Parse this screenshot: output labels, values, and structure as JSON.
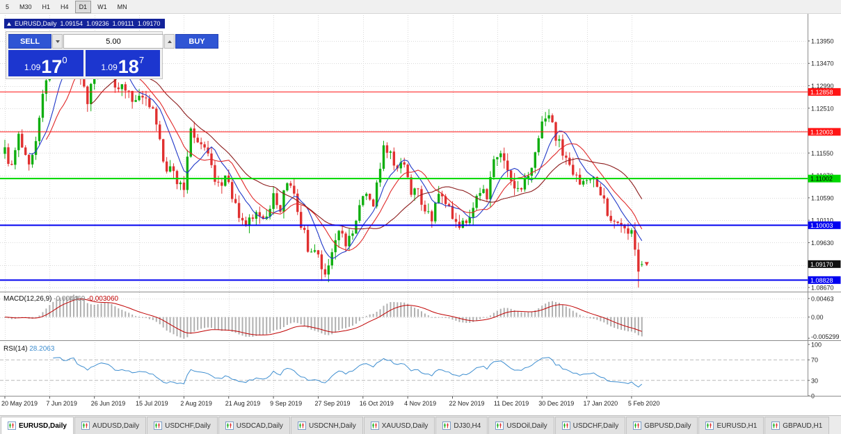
{
  "toolbar": {
    "timeframes": [
      {
        "label": "5",
        "active": false
      },
      {
        "label": "M30",
        "active": false
      },
      {
        "label": "H1",
        "active": false
      },
      {
        "label": "H4",
        "active": false
      },
      {
        "label": "D1",
        "active": true
      },
      {
        "label": "W1",
        "active": false
      },
      {
        "label": "MN",
        "active": false
      }
    ]
  },
  "chart_header": {
    "symbol": "EURUSD,Daily",
    "open": "1.09154",
    "high": "1.09236",
    "low": "1.09111",
    "close": "1.09170"
  },
  "trade_panel": {
    "sell_label": "SELL",
    "buy_label": "BUY",
    "lot_size": "5.00",
    "bid": {
      "base": "1.09",
      "big": "17",
      "sup": "0"
    },
    "ask": {
      "base": "1.09",
      "big": "18",
      "sup": "7"
    }
  },
  "price_axis": {
    "min": 1.0858,
    "max": 1.145,
    "ticks": [
      "1.13950",
      "1.13470",
      "1.12990",
      "1.12510",
      "1.12030",
      "1.11550",
      "1.11070",
      "1.10590",
      "1.10110",
      "1.09630",
      "1.09150",
      "1.08670"
    ]
  },
  "chart_data": {
    "type": "candlestick",
    "title": "EURUSD,Daily",
    "n_candles": 186,
    "label_every": 13,
    "x_labels": [
      "20 May 2019",
      "7 Jun 2019",
      "26 Jun 2019",
      "15 Jul 2019",
      "2 Aug 2019",
      "21 Aug 2019",
      "9 Sep 2019",
      "27 Sep 2019",
      "16 Oct 2019",
      "4 Nov 2019",
      "22 Nov 2019",
      "11 Dec 2019",
      "30 Dec 2019",
      "17 Jan 2020",
      "5 Feb 2020"
    ],
    "price_keypoints": [
      [
        0,
        1.116
      ],
      [
        2,
        1.1128
      ],
      [
        4,
        1.1192
      ],
      [
        7,
        1.1138
      ],
      [
        9,
        1.1172
      ],
      [
        11,
        1.1282
      ],
      [
        13,
        1.1338
      ],
      [
        15,
        1.1372
      ],
      [
        17,
        1.133
      ],
      [
        20,
        1.1392
      ],
      [
        22,
        1.1302
      ],
      [
        24,
        1.1272
      ],
      [
        26,
        1.1312
      ],
      [
        28,
        1.1382
      ],
      [
        30,
        1.1352
      ],
      [
        33,
        1.1282
      ],
      [
        35,
        1.13
      ],
      [
        38,
        1.1265
      ],
      [
        41,
        1.1282
      ],
      [
        44,
        1.1222
      ],
      [
        46,
        1.1132
      ],
      [
        49,
        1.1112
      ],
      [
        52,
        1.1075
      ],
      [
        54,
        1.1198
      ],
      [
        56,
        1.1188
      ],
      [
        59,
        1.1162
      ],
      [
        61,
        1.1092
      ],
      [
        64,
        1.11
      ],
      [
        67,
        1.1046
      ],
      [
        70,
        1.0992
      ],
      [
        73,
        1.1032
      ],
      [
        76,
        1.1022
      ],
      [
        78,
        1.1066
      ],
      [
        80,
        1.1032
      ],
      [
        82,
        1.11
      ],
      [
        84,
        1.1062
      ],
      [
        86,
        1.1002
      ],
      [
        88,
        1.0956
      ],
      [
        91,
        1.0932
      ],
      [
        93,
        1.0892
      ],
      [
        95,
        1.0936
      ],
      [
        97,
        1.099
      ],
      [
        99,
        1.0952
      ],
      [
        101,
        1.0986
      ],
      [
        103,
        1.1032
      ],
      [
        105,
        1.1072
      ],
      [
        107,
        1.1042
      ],
      [
        110,
        1.1162
      ],
      [
        112,
        1.1146
      ],
      [
        114,
        1.1112
      ],
      [
        116,
        1.1142
      ],
      [
        118,
        1.1076
      ],
      [
        120,
        1.1072
      ],
      [
        122,
        1.1032
      ],
      [
        124,
        1.1012
      ],
      [
        126,
        1.1062
      ],
      [
        128,
        1.1052
      ],
      [
        130,
        1.1016
      ],
      [
        132,
        1.1002
      ],
      [
        134,
        1.0992
      ],
      [
        136,
        1.1042
      ],
      [
        138,
        1.1082
      ],
      [
        140,
        1.1062
      ],
      [
        142,
        1.1132
      ],
      [
        144,
        1.1142
      ],
      [
        146,
        1.1122
      ],
      [
        148,
        1.1086
      ],
      [
        150,
        1.1082
      ],
      [
        152,
        1.1112
      ],
      [
        154,
        1.1152
      ],
      [
        156,
        1.1212
      ],
      [
        158,
        1.1232
      ],
      [
        160,
        1.1192
      ],
      [
        162,
        1.1162
      ],
      [
        164,
        1.1122
      ],
      [
        166,
        1.1102
      ],
      [
        168,
        1.1092
      ],
      [
        170,
        1.1102
      ],
      [
        172,
        1.1086
      ],
      [
        175,
        1.1032
      ],
      [
        178,
        1.1002
      ],
      [
        180,
        1.0998
      ],
      [
        182,
        1.0988
      ],
      [
        183,
        1.0948
      ],
      [
        184,
        1.0902
      ],
      [
        185,
        1.0917
      ]
    ],
    "last_candle": {
      "open": 1.09154,
      "high": 1.09236,
      "low": 1.09111,
      "close": 1.0917
    },
    "horizontal_lines": [
      {
        "label": "1.12858",
        "price": 1.12858,
        "color": "#ff1414",
        "text_color": "#ffffff",
        "width": 1
      },
      {
        "label": "1.12003",
        "price": 1.12003,
        "color": "#ff1414",
        "text_color": "#ffffff",
        "width": 1
      },
      {
        "label": "1.11002",
        "price": 1.11002,
        "color": "#00d800",
        "text_color": "#000000",
        "width": 2
      },
      {
        "label": "1.10003",
        "price": 1.10003,
        "color": "#0000f0",
        "text_color": "#ffffff",
        "width": 2
      },
      {
        "label": "1.08828",
        "price": 1.08828,
        "color": "#0000f0",
        "text_color": "#ffffff",
        "width": 2
      }
    ],
    "current_price": {
      "label": "1.09170",
      "price": 1.0917
    },
    "candle_colors": {
      "up": "#0fae0f",
      "down": "#e03030"
    },
    "ma_lines": [
      {
        "period": 8,
        "color": "#2038c8"
      },
      {
        "period": 13,
        "color": "#e02828"
      },
      {
        "period": 26,
        "color": "#8b1a1a"
      }
    ],
    "macd": {
      "label": "MACD(12,26,9)",
      "value1": "-0.004469",
      "value2": "-0.003060",
      "axis_labels": [
        {
          "text": "0.00463",
          "value": 0.00463
        },
        {
          "text": "0.00",
          "value": 0
        },
        {
          "text": "-0.005299",
          "value": -0.005299
        }
      ],
      "range": [
        -0.0058,
        0.006
      ],
      "hist_color": "#b0b0b0",
      "signal_color": "#c00000"
    },
    "rsi": {
      "label": "RSI(14)",
      "value": "28.2063",
      "color": "#3e8ed0",
      "axis_labels": [
        {
          "text": "100",
          "value": 100
        },
        {
          "text": "70",
          "value": 70
        },
        {
          "text": "30",
          "value": 30
        },
        {
          "text": "0",
          "value": 0
        }
      ],
      "dashed_levels": [
        70,
        30
      ]
    }
  },
  "tabs": [
    {
      "label": "EURUSD,Daily",
      "active": true
    },
    {
      "label": "AUDUSD,Daily",
      "active": false
    },
    {
      "label": "USDCHF,Daily",
      "active": false
    },
    {
      "label": "USDCAD,Daily",
      "active": false
    },
    {
      "label": "USDCNH,Daily",
      "active": false
    },
    {
      "label": "XAUUSD,Daily",
      "active": false
    },
    {
      "label": "DJ30,H4",
      "active": false
    },
    {
      "label": "USDOil,Daily",
      "active": false
    },
    {
      "label": "USDCHF,Daily",
      "active": false
    },
    {
      "label": "GBPUSD,Daily",
      "active": false
    },
    {
      "label": "EURUSD,H1",
      "active": false
    },
    {
      "label": "GBPAUD,H1",
      "active": false
    }
  ]
}
